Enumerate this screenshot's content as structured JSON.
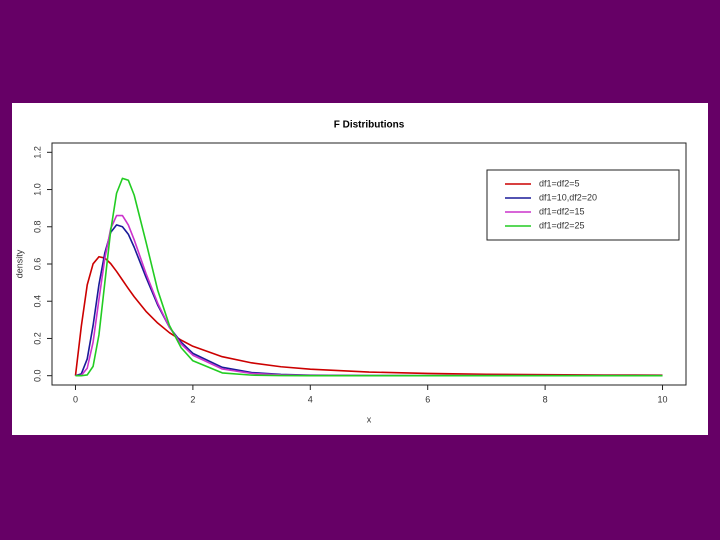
{
  "chart_data": {
    "type": "line",
    "title": "F Distributions",
    "x_label": "x",
    "y_label": "density",
    "x": [
      0,
      0.1,
      0.2,
      0.3,
      0.4,
      0.5,
      0.6,
      0.7,
      0.8,
      0.9,
      1.0,
      1.2,
      1.4,
      1.6,
      1.8,
      2.0,
      2.5,
      3,
      3.5,
      4,
      5,
      6,
      7,
      8,
      9,
      10
    ],
    "series": [
      {
        "name": "df1=df2=5",
        "color": "#cc0000",
        "values": [
          0,
          0.267,
          0.488,
          0.601,
          0.639,
          0.632,
          0.602,
          0.56,
          0.514,
          0.468,
          0.424,
          0.346,
          0.283,
          0.231,
          0.191,
          0.158,
          0.102,
          0.069,
          0.048,
          0.035,
          0.0195,
          0.0119,
          0.0077,
          0.0052,
          0.0037,
          0.0027
        ]
      },
      {
        "name": "df1=10,df2=20",
        "color": "#1a1a99",
        "values": [
          0,
          0.01,
          0.09,
          0.27,
          0.49,
          0.66,
          0.77,
          0.81,
          0.8,
          0.76,
          0.69,
          0.53,
          0.38,
          0.26,
          0.18,
          0.12,
          0.045,
          0.017,
          0.007,
          0.003,
          0.001,
          0,
          0,
          0,
          0,
          0
        ]
      },
      {
        "name": "df1=df2=15",
        "color": "#cc33cc",
        "values": [
          0,
          0.002,
          0.04,
          0.18,
          0.41,
          0.63,
          0.79,
          0.86,
          0.86,
          0.81,
          0.73,
          0.55,
          0.39,
          0.26,
          0.17,
          0.11,
          0.036,
          0.012,
          0.004,
          0.0015,
          0.0002,
          0,
          0,
          0,
          0,
          0
        ]
      },
      {
        "name": "df1=df2=25",
        "color": "#22cc22",
        "values": [
          0,
          0,
          0.004,
          0.05,
          0.22,
          0.5,
          0.78,
          0.98,
          1.06,
          1.05,
          0.97,
          0.72,
          0.46,
          0.27,
          0.15,
          0.08,
          0.015,
          0.003,
          0.0006,
          0.0001,
          0,
          0,
          0,
          0,
          0,
          0
        ]
      }
    ],
    "xlim": [
      -0.4,
      10.4
    ],
    "ylim": [
      -0.05,
      1.25
    ],
    "xticks": [
      0,
      2,
      4,
      6,
      8,
      10
    ],
    "yticks": [
      {
        "value": 0,
        "label": "0.0"
      },
      {
        "value": 0.2,
        "label": "0.2"
      },
      {
        "value": 0.4,
        "label": "0.4"
      },
      {
        "value": 0.6,
        "label": "0.6"
      },
      {
        "value": 0.8,
        "label": "0.8"
      },
      {
        "value": 1.0,
        "label": "1.0"
      },
      {
        "value": 1.2,
        "label": "1.2"
      }
    ],
    "legend": "top-right"
  }
}
